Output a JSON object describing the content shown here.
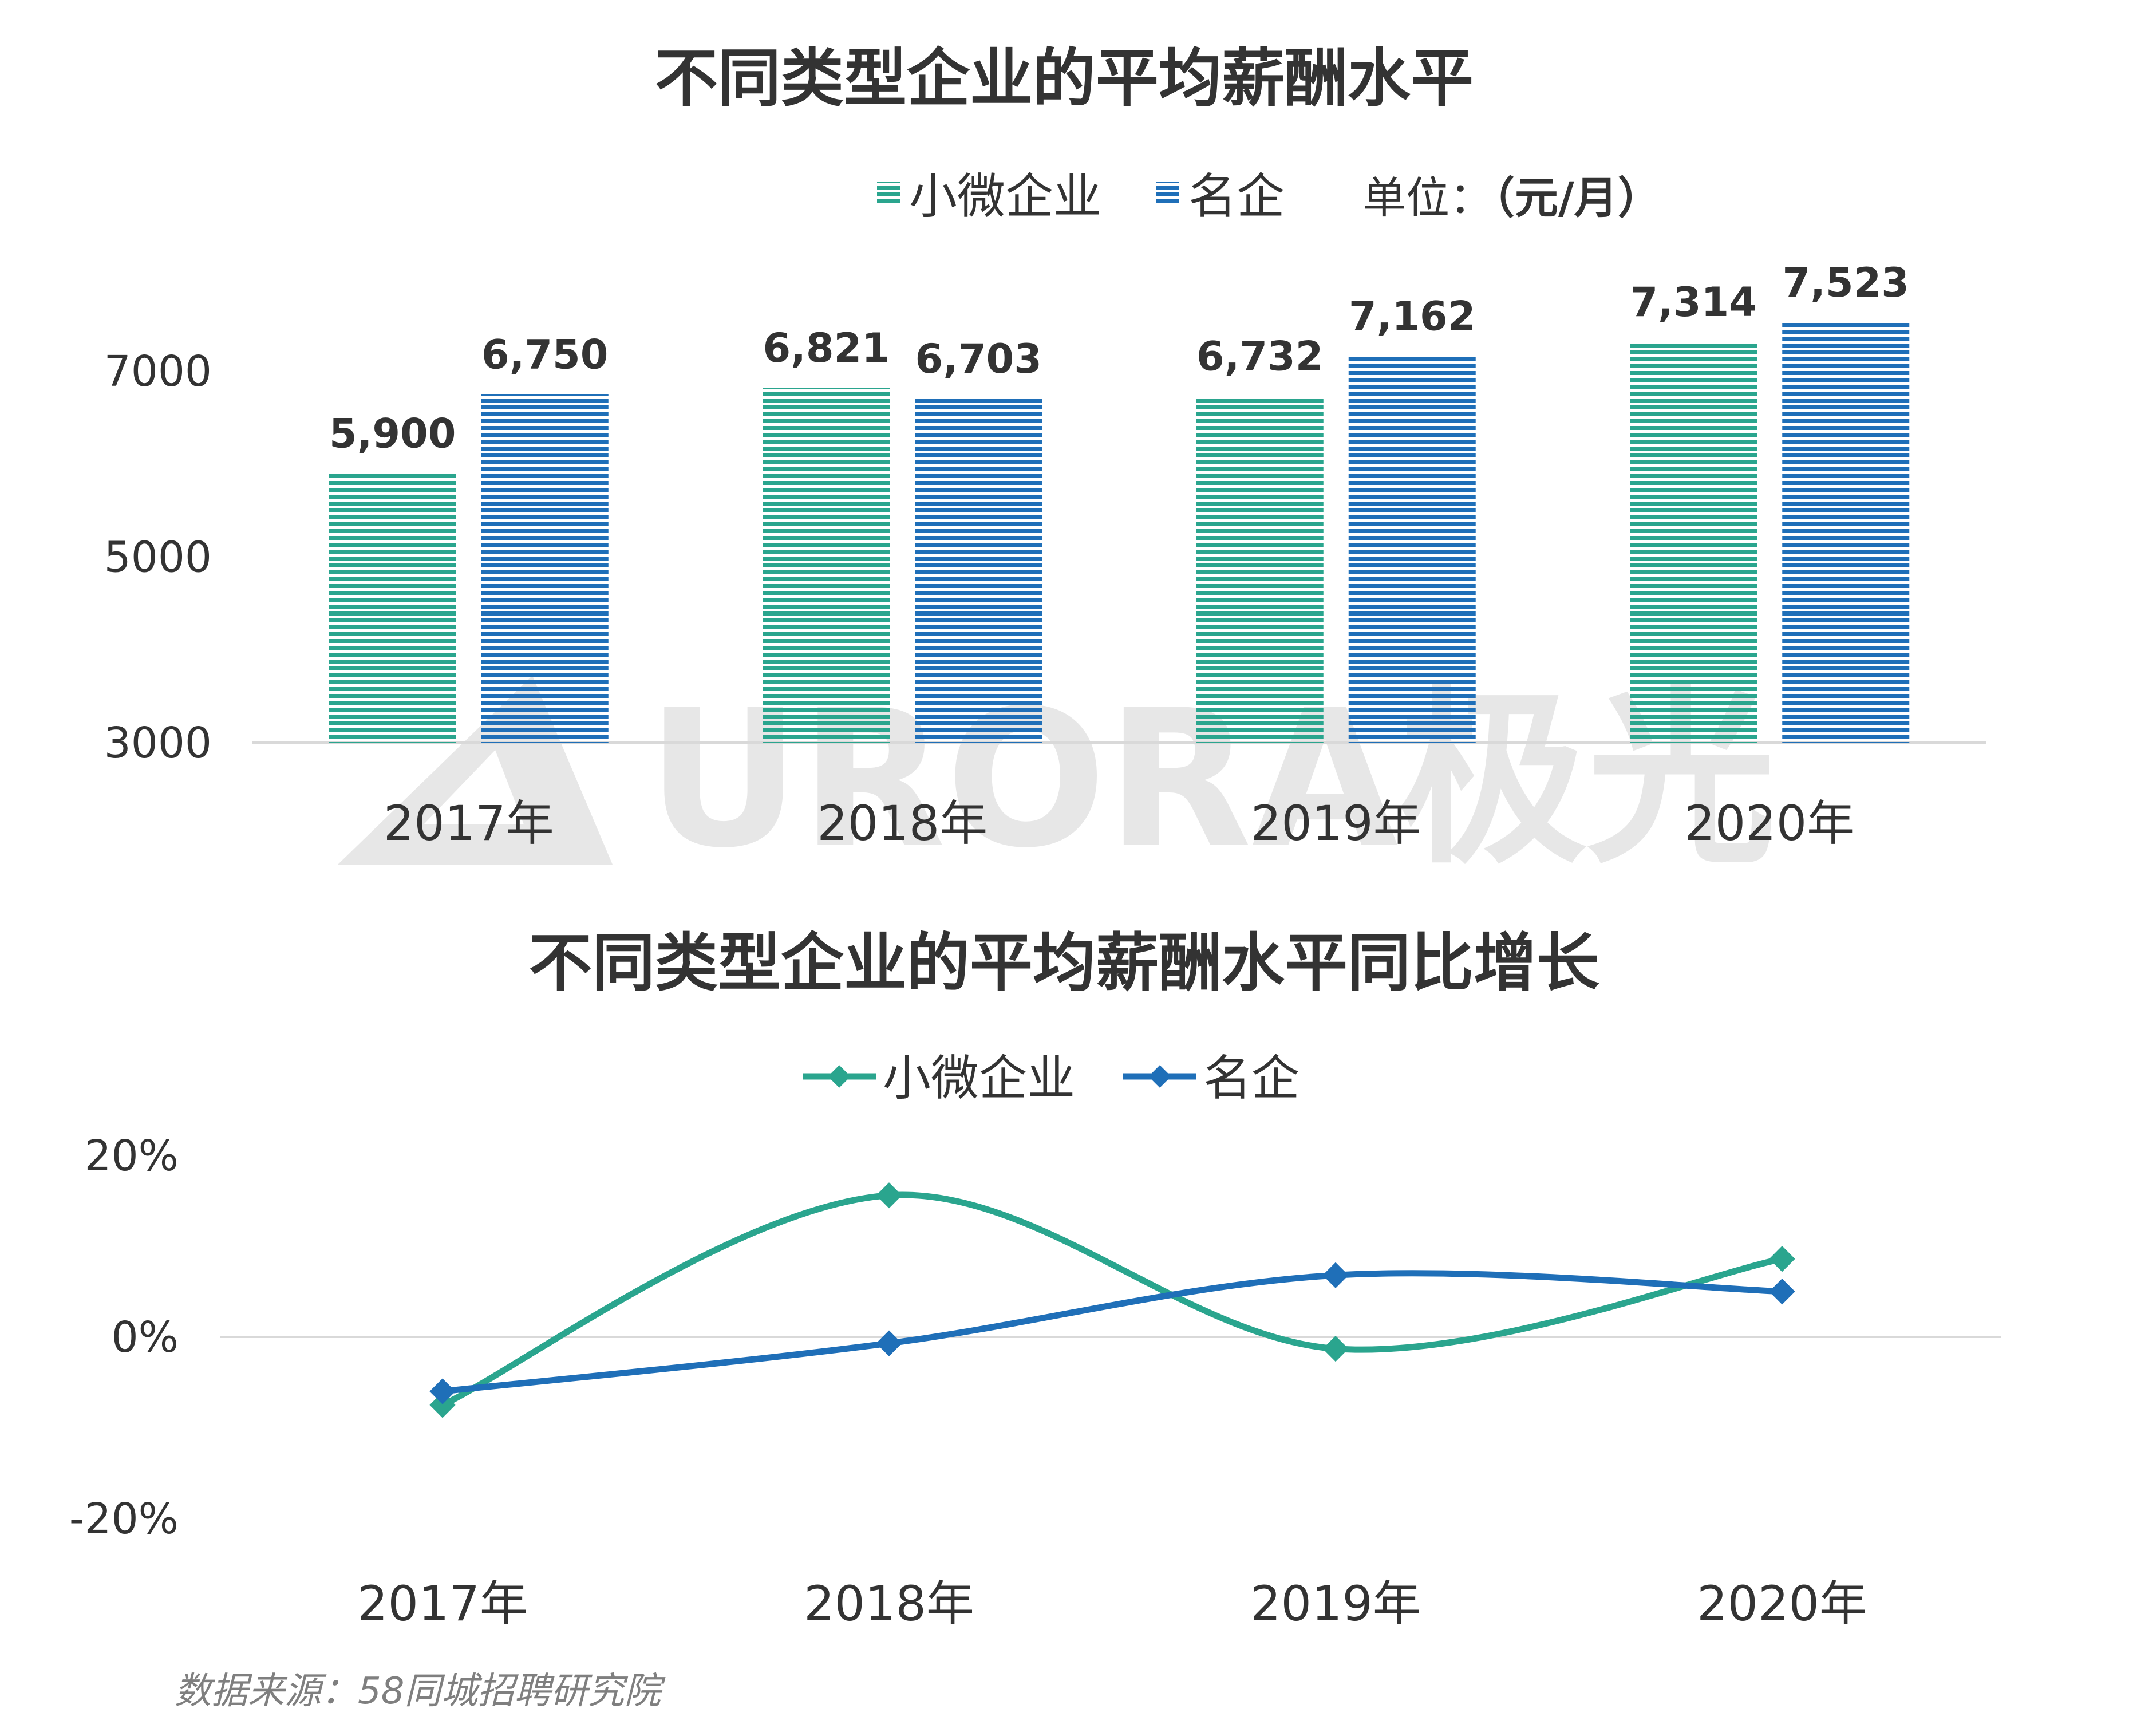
{
  "source": "数据来源：58同城招聘研究院",
  "watermark": {
    "text": "URORA极光"
  },
  "colors": {
    "small": "#2aa58e",
    "famous": "#1f6fb8",
    "axis": "#d9d9d9",
    "text": "#333333"
  },
  "chart_data": [
    {
      "type": "bar",
      "title": "不同类型企业的平均薪酬水平",
      "unit_prefix": "单位：",
      "unit_value": "（元/月）",
      "categories": [
        "2017年",
        "2018年",
        "2019年",
        "2020年"
      ],
      "series": [
        {
          "name": "小微企业",
          "values": [
            5900,
            6821,
            6732,
            7314
          ],
          "labels": [
            "5,900",
            "6,821",
            "6,732",
            "7,314"
          ],
          "color": "#2aa58e",
          "pattern": "horizontal-stripes"
        },
        {
          "name": "名企",
          "values": [
            6750,
            6703,
            7162,
            7523
          ],
          "labels": [
            "6,750",
            "6,703",
            "7,162",
            "7,523"
          ],
          "color": "#1f6fb8",
          "pattern": "horizontal-stripes"
        }
      ],
      "yticks": [
        3000,
        5000,
        7000
      ],
      "ytick_labels": [
        "3000",
        "5000",
        "7000"
      ],
      "ylim": [
        3000,
        7600
      ],
      "legend": "top-center",
      "grid": false
    },
    {
      "type": "line",
      "title": "不同类型企业的平均薪酬水平同比增长",
      "categories": [
        "2017年",
        "2018年",
        "2019年",
        "2020年"
      ],
      "series": [
        {
          "name": "小微企业",
          "values": [
            -7.5,
            15.6,
            -1.3,
            8.6
          ],
          "color": "#2aa58e",
          "marker": "diamond",
          "smooth": true
        },
        {
          "name": "名企",
          "values": [
            -6.0,
            -0.7,
            6.8,
            5.0
          ],
          "color": "#1f6fb8",
          "marker": "diamond",
          "smooth": true
        }
      ],
      "yticks": [
        -20,
        0,
        20
      ],
      "ytick_labels": [
        "-20%",
        "0%",
        "20%"
      ],
      "ylim": [
        -20,
        20
      ],
      "legend": "top-center",
      "grid": false
    }
  ]
}
